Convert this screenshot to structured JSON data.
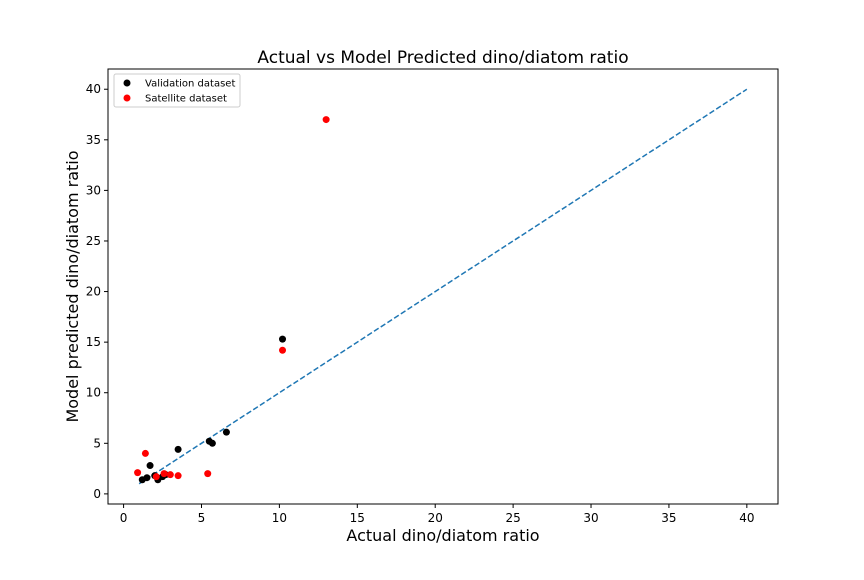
{
  "chart_data": {
    "type": "scatter",
    "title": "Actual vs Model Predicted dino/diatom ratio",
    "xlabel": "Actual dino/diatom ratio",
    "ylabel": "Model predicted dino/diatom ratio",
    "xlim": [
      -1,
      42
    ],
    "ylim": [
      -1,
      42
    ],
    "xticks": [
      0,
      5,
      10,
      15,
      20,
      25,
      30,
      35,
      40
    ],
    "yticks": [
      0,
      5,
      10,
      15,
      20,
      25,
      30,
      35,
      40
    ],
    "grid": false,
    "legend_position": "top-left",
    "series": [
      {
        "name": "Validation dataset",
        "color": "#000000",
        "points": [
          {
            "x": 1.2,
            "y": 1.4
          },
          {
            "x": 1.5,
            "y": 1.6
          },
          {
            "x": 1.7,
            "y": 2.8
          },
          {
            "x": 2.0,
            "y": 1.8
          },
          {
            "x": 2.2,
            "y": 1.4
          },
          {
            "x": 2.5,
            "y": 1.7
          },
          {
            "x": 2.7,
            "y": 1.9
          },
          {
            "x": 3.5,
            "y": 4.4
          },
          {
            "x": 5.5,
            "y": 5.2
          },
          {
            "x": 5.7,
            "y": 5.0
          },
          {
            "x": 6.6,
            "y": 6.1
          },
          {
            "x": 10.2,
            "y": 15.3
          }
        ]
      },
      {
        "name": "Satellite dataset",
        "color": "#ff0000",
        "points": [
          {
            "x": 0.9,
            "y": 2.1
          },
          {
            "x": 1.4,
            "y": 4.0
          },
          {
            "x": 2.1,
            "y": 1.7
          },
          {
            "x": 2.6,
            "y": 2.0
          },
          {
            "x": 3.0,
            "y": 1.9
          },
          {
            "x": 3.5,
            "y": 1.8
          },
          {
            "x": 5.4,
            "y": 2.0
          },
          {
            "x": 10.2,
            "y": 14.2
          },
          {
            "x": 13.0,
            "y": 37.0
          }
        ]
      }
    ],
    "reference_line": {
      "color": "#1f77b4",
      "style": "dashed",
      "x": [
        1,
        40
      ],
      "y": [
        1,
        40
      ]
    }
  }
}
